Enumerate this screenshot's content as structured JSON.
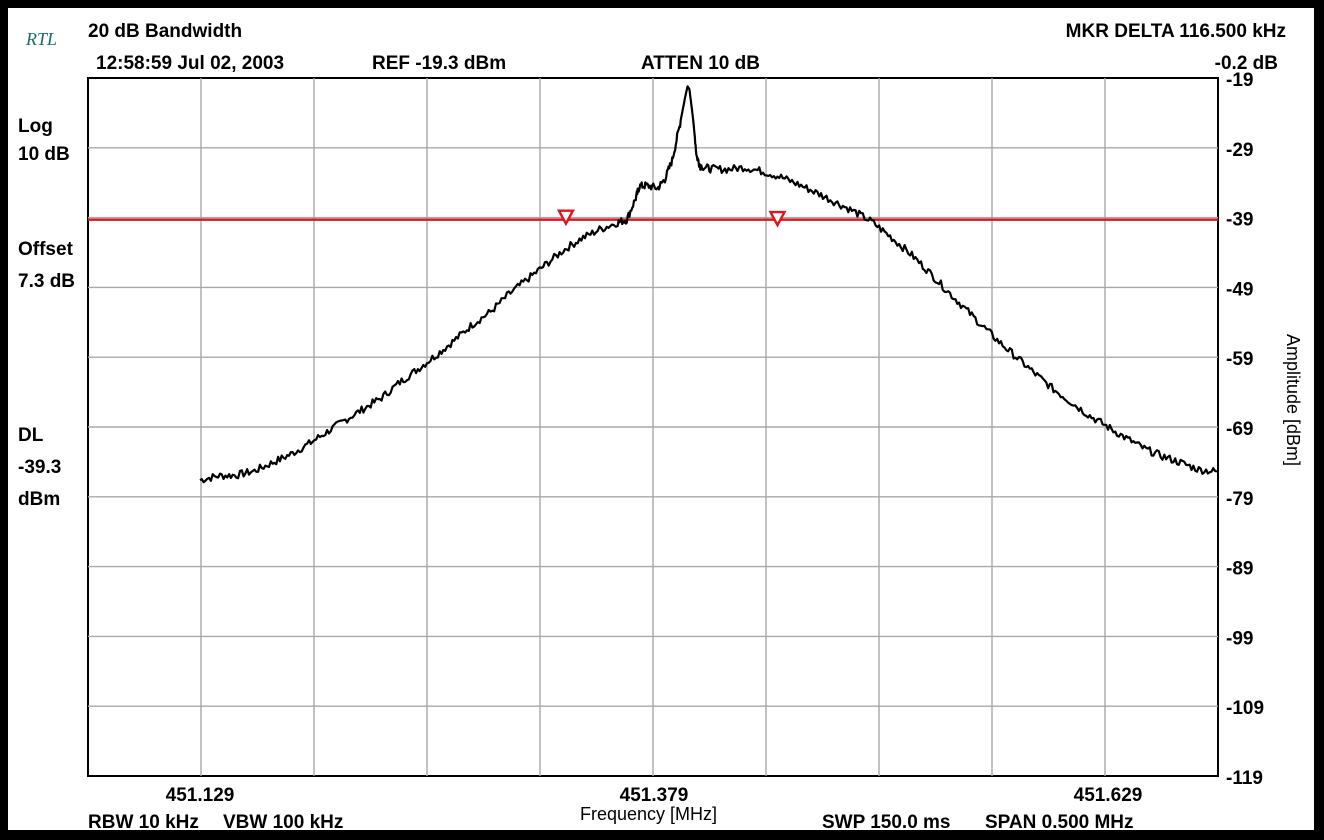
{
  "header": {
    "logo": "RTL",
    "title": "20 dB Bandwidth",
    "timestamp": "12:58:59 Jul 02, 2003",
    "ref": "REF -19.3 dBm",
    "atten": "ATTEN 10 dB",
    "marker_delta": "MKR DELTA 116.500 kHz",
    "marker_delta_db": "-0.2 dB"
  },
  "left_panel": {
    "scale_mode": "Log",
    "scale_div": "10 dB",
    "offset_label": "Offset",
    "offset_value": "7.3 dB",
    "dl_label": "DL",
    "dl_value": "-39.3",
    "dl_unit": "dBm"
  },
  "footer": {
    "rbw": "RBW 10 kHz",
    "vbw": "VBW 100 kHz",
    "xlabel": "Frequency [MHz]",
    "swp": "SWP 150.0 ms",
    "span": "SPAN 0.500 MHz"
  },
  "chart_data": {
    "type": "line",
    "title": "20 dB Bandwidth",
    "xlabel": "Frequency [MHz]",
    "ylabel": "Amplitude [dBm]",
    "xlim": [
      451.129,
      451.629
    ],
    "ylim": [
      -119,
      -19
    ],
    "grid": true,
    "x_tick_labels": [
      {
        "value": 451.129,
        "label": "451.129"
      },
      {
        "value": 451.379,
        "label": "451.379"
      },
      {
        "value": 451.629,
        "label": "451.629"
      }
    ],
    "y_ticks": [
      -19,
      -29,
      -39,
      -49,
      -59,
      -69,
      -79,
      -89,
      -99,
      -109,
      -119
    ],
    "display_line": {
      "value": -39.3,
      "color": "#e0141e"
    },
    "markers": [
      {
        "x": 451.3305,
        "y": -39.3,
        "color": "#e0141e"
      },
      {
        "x": 451.447,
        "y": -39.5,
        "color": "#e0141e"
      }
    ],
    "series": [
      {
        "color": "#000000",
        "points": [
          [
            451.129,
            -76.6
          ],
          [
            451.139,
            -76.0
          ],
          [
            451.149,
            -75.9
          ],
          [
            451.159,
            -75.3
          ],
          [
            451.169,
            -74.1
          ],
          [
            451.179,
            -72.9
          ],
          [
            451.189,
            -71.4
          ],
          [
            451.199,
            -69.7
          ],
          [
            451.209,
            -68.0
          ],
          [
            451.219,
            -66.4
          ],
          [
            451.229,
            -64.8
          ],
          [
            451.239,
            -62.6
          ],
          [
            451.249,
            -60.7
          ],
          [
            451.259,
            -58.7
          ],
          [
            451.269,
            -56.6
          ],
          [
            451.279,
            -54.3
          ],
          [
            451.289,
            -52.5
          ],
          [
            451.299,
            -50.0
          ],
          [
            451.309,
            -47.9
          ],
          [
            451.319,
            -45.8
          ],
          [
            451.329,
            -43.7
          ],
          [
            451.339,
            -42.0
          ],
          [
            451.349,
            -40.7
          ],
          [
            451.359,
            -39.7
          ],
          [
            451.364,
            -39.3
          ],
          [
            451.369,
            -36.2
          ],
          [
            451.371,
            -34.5
          ],
          [
            451.375,
            -34.4
          ],
          [
            451.381,
            -34.8
          ],
          [
            451.385,
            -33.5
          ],
          [
            451.389,
            -30.8
          ],
          [
            451.393,
            -26.0
          ],
          [
            451.3965,
            -21.3
          ],
          [
            451.3975,
            -20.2
          ],
          [
            451.3985,
            -20.6
          ],
          [
            451.4005,
            -24.8
          ],
          [
            451.4025,
            -30.2
          ],
          [
            451.4045,
            -31.6
          ],
          [
            451.41,
            -32.0
          ],
          [
            451.419,
            -32.1
          ],
          [
            451.429,
            -31.8
          ],
          [
            451.439,
            -32.4
          ],
          [
            451.449,
            -33.2
          ],
          [
            451.459,
            -34.3
          ],
          [
            451.469,
            -35.5
          ],
          [
            451.479,
            -36.8
          ],
          [
            451.489,
            -38.1
          ],
          [
            451.499,
            -39.6
          ],
          [
            451.509,
            -41.7
          ],
          [
            451.519,
            -43.9
          ],
          [
            451.529,
            -46.4
          ],
          [
            451.539,
            -49.1
          ],
          [
            451.549,
            -51.7
          ],
          [
            451.559,
            -54.3
          ],
          [
            451.569,
            -56.8
          ],
          [
            451.579,
            -59.1
          ],
          [
            451.589,
            -61.4
          ],
          [
            451.599,
            -63.6
          ],
          [
            451.609,
            -65.5
          ],
          [
            451.619,
            -67.4
          ],
          [
            451.629,
            -69.0
          ],
          [
            451.639,
            -70.6
          ],
          [
            451.649,
            -72.1
          ],
          [
            451.659,
            -73.2
          ],
          [
            451.669,
            -74.1
          ],
          [
            451.679,
            -75.1
          ],
          [
            451.689,
            -75.4
          ],
          [
            451.699,
            -75.7
          ],
          [
            451.709,
            -76.3
          ],
          [
            451.719,
            -76.5
          ],
          [
            451.729,
            -76.6
          ]
        ]
      }
    ]
  }
}
